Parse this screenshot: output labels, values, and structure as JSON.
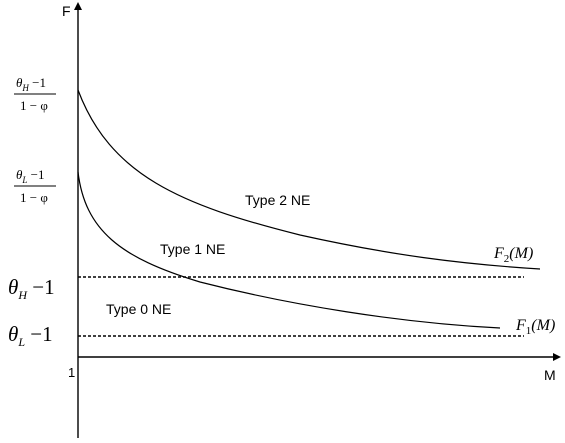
{
  "diagram": {
    "axes": {
      "y_label": "F",
      "x_label": "M",
      "origin_label": "1"
    },
    "y_ticks": {
      "theta_h_frac": {
        "num": "θ",
        "num_sub": "H",
        "num_rest": " −1",
        "den": "1 − φ"
      },
      "theta_l_frac": {
        "num": "θ",
        "num_sub": "L",
        "num_rest": " −1",
        "den": "1 − φ"
      },
      "theta_h": {
        "sym": "θ",
        "sub": "H",
        "rest": " −1"
      },
      "theta_l": {
        "sym": "θ",
        "sub": "L",
        "rest": " −1"
      }
    },
    "regions": {
      "type2": "Type 2 NE",
      "type1": "Type 1 NE",
      "type0": "Type 0 NE"
    },
    "curves": {
      "f2": {
        "sym": "F",
        "sub": "2",
        "arg": "(M)"
      },
      "f1": {
        "sym": "F",
        "sub": "1",
        "arg": "(M)"
      }
    }
  }
}
